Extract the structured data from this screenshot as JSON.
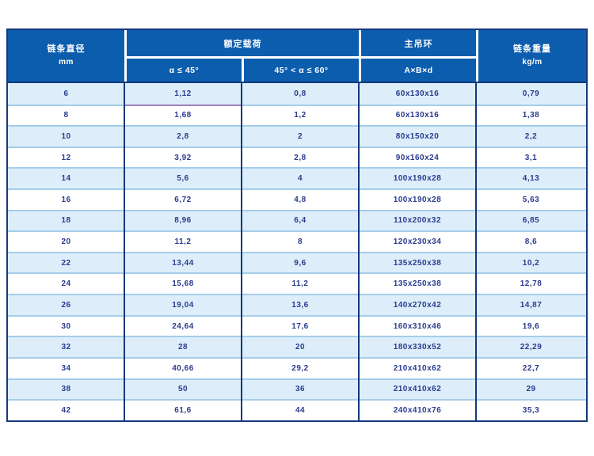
{
  "table": {
    "columns": {
      "diameter": {
        "title": "链条直径",
        "unit": "mm"
      },
      "rated_load": {
        "group_title": "额定载荷",
        "sub_left": "α ≤ 45°",
        "sub_right": "45° < α ≤ 60°"
      },
      "main_ring": {
        "title": "主吊环",
        "sub": "A×B×d"
      },
      "chain_weight": {
        "title": "链条重量",
        "unit": "kg/m"
      }
    },
    "rows": [
      [
        "6",
        "1,12",
        "0,8",
        "60x130x16",
        "0,79"
      ],
      [
        "8",
        "1,68",
        "1,2",
        "60x130x16",
        "1,38"
      ],
      [
        "10",
        "2,8",
        "2",
        "80x150x20",
        "2,2"
      ],
      [
        "12",
        "3,92",
        "2,8",
        "90x160x24",
        "3,1"
      ],
      [
        "14",
        "5,6",
        "4",
        "100x190x28",
        "4,13"
      ],
      [
        "16",
        "6,72",
        "4,8",
        "100x190x28",
        "5,63"
      ],
      [
        "18",
        "8,96",
        "6,4",
        "110x200x32",
        "6,85"
      ],
      [
        "20",
        "11,2",
        "8",
        "120x230x34",
        "8,6"
      ],
      [
        "22",
        "13,44",
        "9,6",
        "135x250x38",
        "10,2"
      ],
      [
        "24",
        "15,68",
        "11,2",
        "135x250x38",
        "12,78"
      ],
      [
        "26",
        "19,04",
        "13,6",
        "140x270x42",
        "14,87"
      ],
      [
        "30",
        "24,64",
        "17,6",
        "160x310x46",
        "19,6"
      ],
      [
        "32",
        "28",
        "20",
        "180x330x52",
        "22,29"
      ],
      [
        "34",
        "40,66",
        "29,2",
        "210x410x62",
        "22,7"
      ],
      [
        "38",
        "50",
        "36",
        "210x410x62",
        "29"
      ],
      [
        "42",
        "61,6",
        "44",
        "240x410x76",
        "35,3"
      ]
    ],
    "colors": {
      "header_bg": "#0c5dad",
      "row_alt_bg": "#ddeefa",
      "row_bg": "#ffffff",
      "border_dark": "#16387c",
      "row_divider": "#a4cdea",
      "body_text": "#2a3b8f",
      "header_text": "#ffffff",
      "highlight_underline": "#9e7fbe"
    }
  }
}
